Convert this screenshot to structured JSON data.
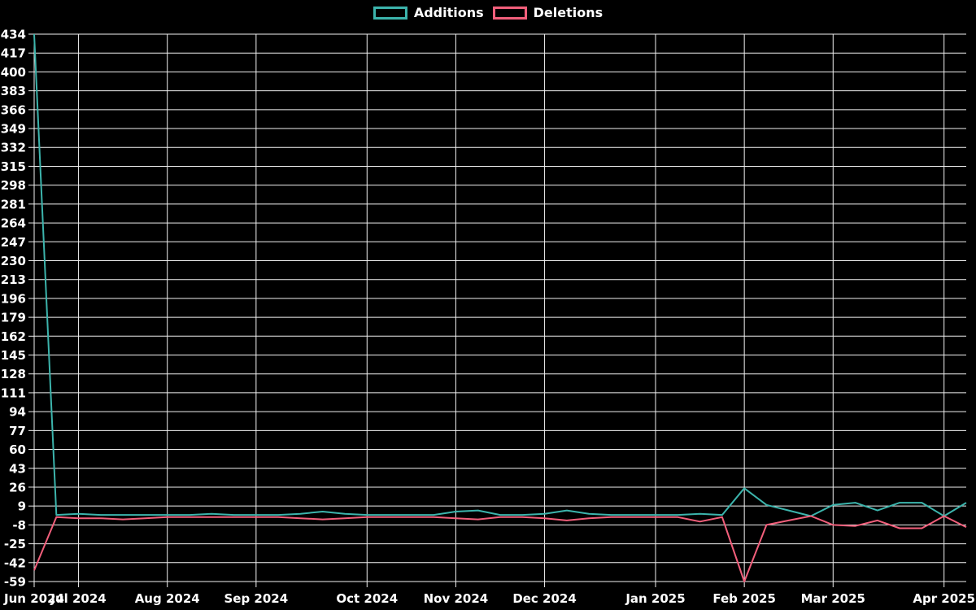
{
  "chart_data": {
    "type": "line",
    "title": "",
    "background_color": "#000000",
    "text_color": "#ffffff",
    "grid_color": "#f2f2f2",
    "grid": true,
    "legend_position": "top-center",
    "ylim": [
      -59,
      434
    ],
    "y_tick_step": 17,
    "y_ticks": [
      434,
      417,
      400,
      383,
      366,
      349,
      332,
      315,
      298,
      281,
      264,
      247,
      230,
      213,
      196,
      179,
      162,
      145,
      128,
      111,
      94,
      77,
      60,
      43,
      26,
      9,
      -8,
      -25,
      -42,
      -59
    ],
    "x_unit": "week-index",
    "x_tick_positions": [
      0,
      2,
      6,
      10,
      15,
      19,
      23,
      28,
      32,
      36,
      41
    ],
    "x_tick_labels": [
      "Jun 2024",
      "Jul 2024",
      "Aug 2024",
      "Sep 2024",
      "Oct 2024",
      "Nov 2024",
      "Dec 2024",
      "Jan 2025",
      "Feb 2025",
      "Mar 2025",
      "Apr 2025"
    ],
    "series": [
      {
        "name": "Additions",
        "color": "#3cb4ac",
        "values": [
          434,
          1,
          2,
          1,
          1,
          1,
          1,
          1,
          2,
          1,
          1,
          1,
          2,
          4,
          2,
          1,
          1,
          1,
          1,
          4,
          5,
          1,
          1,
          2,
          5,
          2,
          1,
          1,
          1,
          1,
          2,
          1,
          25,
          10,
          5,
          0,
          10,
          12,
          5,
          12,
          12,
          0,
          12
        ]
      },
      {
        "name": "Deletions",
        "color": "#f25f7b",
        "values": [
          -49,
          -1,
          -2,
          -2,
          -3,
          -2,
          -1,
          -1,
          -1,
          -1,
          -1,
          -1,
          -2,
          -3,
          -2,
          -1,
          -1,
          -1,
          -1,
          -2,
          -3,
          -1,
          -1,
          -2,
          -4,
          -2,
          -1,
          -1,
          -1,
          -1,
          -5,
          -1,
          -59,
          -8,
          -4,
          0,
          -8,
          -9,
          -4,
          -11,
          -11,
          0,
          -10
        ]
      }
    ]
  }
}
